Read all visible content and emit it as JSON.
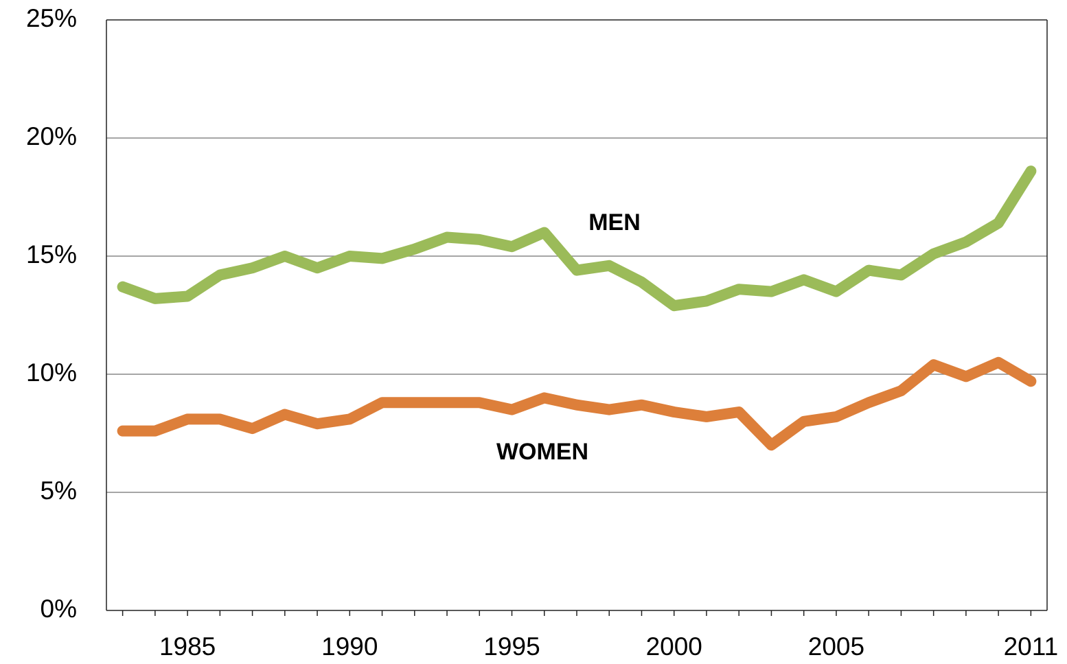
{
  "chart_data": {
    "type": "line",
    "categories": [
      null,
      null,
      "1985",
      null,
      null,
      null,
      null,
      "1990",
      null,
      null,
      null,
      null,
      "1995",
      null,
      null,
      null,
      null,
      "2000",
      null,
      null,
      null,
      null,
      "2005",
      null,
      null,
      null,
      null,
      null,
      "2011"
    ],
    "series": [
      {
        "name": "MEN",
        "color": "#9bbb59",
        "values": [
          13.7,
          13.2,
          13.3,
          14.2,
          14.5,
          15.0,
          14.5,
          15.0,
          14.9,
          15.3,
          15.8,
          15.7,
          15.4,
          16.0,
          14.4,
          14.6,
          13.9,
          12.9,
          13.1,
          13.6,
          13.5,
          14.0,
          13.5,
          14.4,
          14.2,
          15.1,
          15.6,
          16.4,
          18.6
        ]
      },
      {
        "name": "WOMEN",
        "color": "#dd7f3a",
        "values": [
          7.6,
          7.6,
          8.1,
          8.1,
          7.7,
          8.3,
          7.9,
          8.1,
          8.8,
          8.8,
          8.8,
          8.8,
          8.5,
          9.0,
          8.7,
          8.5,
          8.7,
          8.4,
          8.2,
          8.4,
          7.0,
          8.0,
          8.2,
          8.8,
          9.3,
          10.4,
          9.9,
          10.5,
          9.7
        ]
      }
    ],
    "ylim": [
      0,
      25
    ],
    "yticks": [
      {
        "value": 0,
        "label": "0%"
      },
      {
        "value": 5,
        "label": "5%"
      },
      {
        "value": 10,
        "label": "10%"
      },
      {
        "value": 15,
        "label": "15%"
      },
      {
        "value": 20,
        "label": "20%"
      },
      {
        "value": 25,
        "label": "25%"
      }
    ],
    "grid": true
  }
}
